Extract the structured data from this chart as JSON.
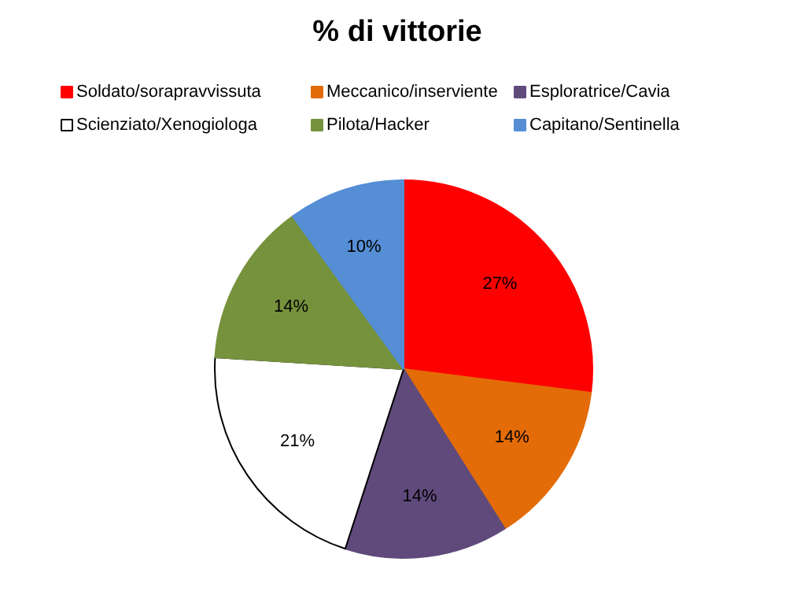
{
  "chart_data": {
    "type": "pie",
    "title": "% di vittorie",
    "categories": [
      "Soldato/sorapravvissuta",
      "Meccanico/inserviente",
      "Esploratrice/Cavia",
      "Scienziato/Xenogiologa",
      "Pilota/Hacker",
      "Capitano/Sentinella"
    ],
    "values": [
      27,
      14,
      14,
      21,
      14,
      10
    ],
    "colors": [
      "#ff0000",
      "#e36c09",
      "#604a7b",
      "#ffffff",
      "#76923c",
      "#558ed5"
    ],
    "value_labels": [
      "27%",
      "14%",
      "14%",
      "21%",
      "14%",
      "10%"
    ],
    "legend": "top"
  }
}
